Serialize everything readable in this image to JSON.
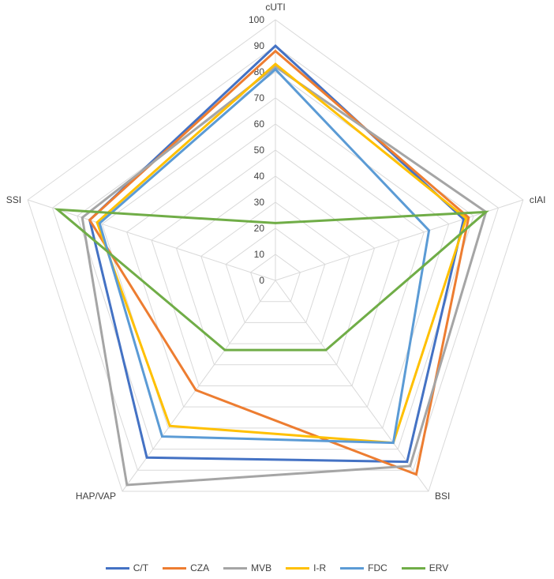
{
  "chart_data": {
    "type": "radar",
    "title": "",
    "categories": [
      "cUTI",
      "cIAI",
      "BSI",
      "HAP/VAP",
      "SSI"
    ],
    "r_ticks": [
      0,
      10,
      20,
      30,
      40,
      50,
      60,
      70,
      80,
      90,
      100
    ],
    "rlim": [
      0,
      100
    ],
    "grid": true,
    "legend_position": "bottom",
    "series": [
      {
        "name": "C/T",
        "color": "#4472C4",
        "values": [
          90,
          76,
          86,
          84,
          75
        ]
      },
      {
        "name": "CZA",
        "color": "#ED7D31",
        "values": [
          88,
          78,
          92,
          52,
          75
        ]
      },
      {
        "name": "MVB",
        "color": "#A5A5A5",
        "values": [
          82,
          85,
          88,
          97,
          78
        ]
      },
      {
        "name": "I-R",
        "color": "#FFC000",
        "values": [
          83,
          77,
          77,
          69,
          72
        ]
      },
      {
        "name": "FDC",
        "color": "#5B9BD5",
        "values": [
          81,
          62,
          77,
          74,
          71
        ]
      },
      {
        "name": "ERV",
        "color": "#70AD47",
        "values": [
          22,
          85,
          33,
          33,
          88
        ]
      }
    ]
  }
}
